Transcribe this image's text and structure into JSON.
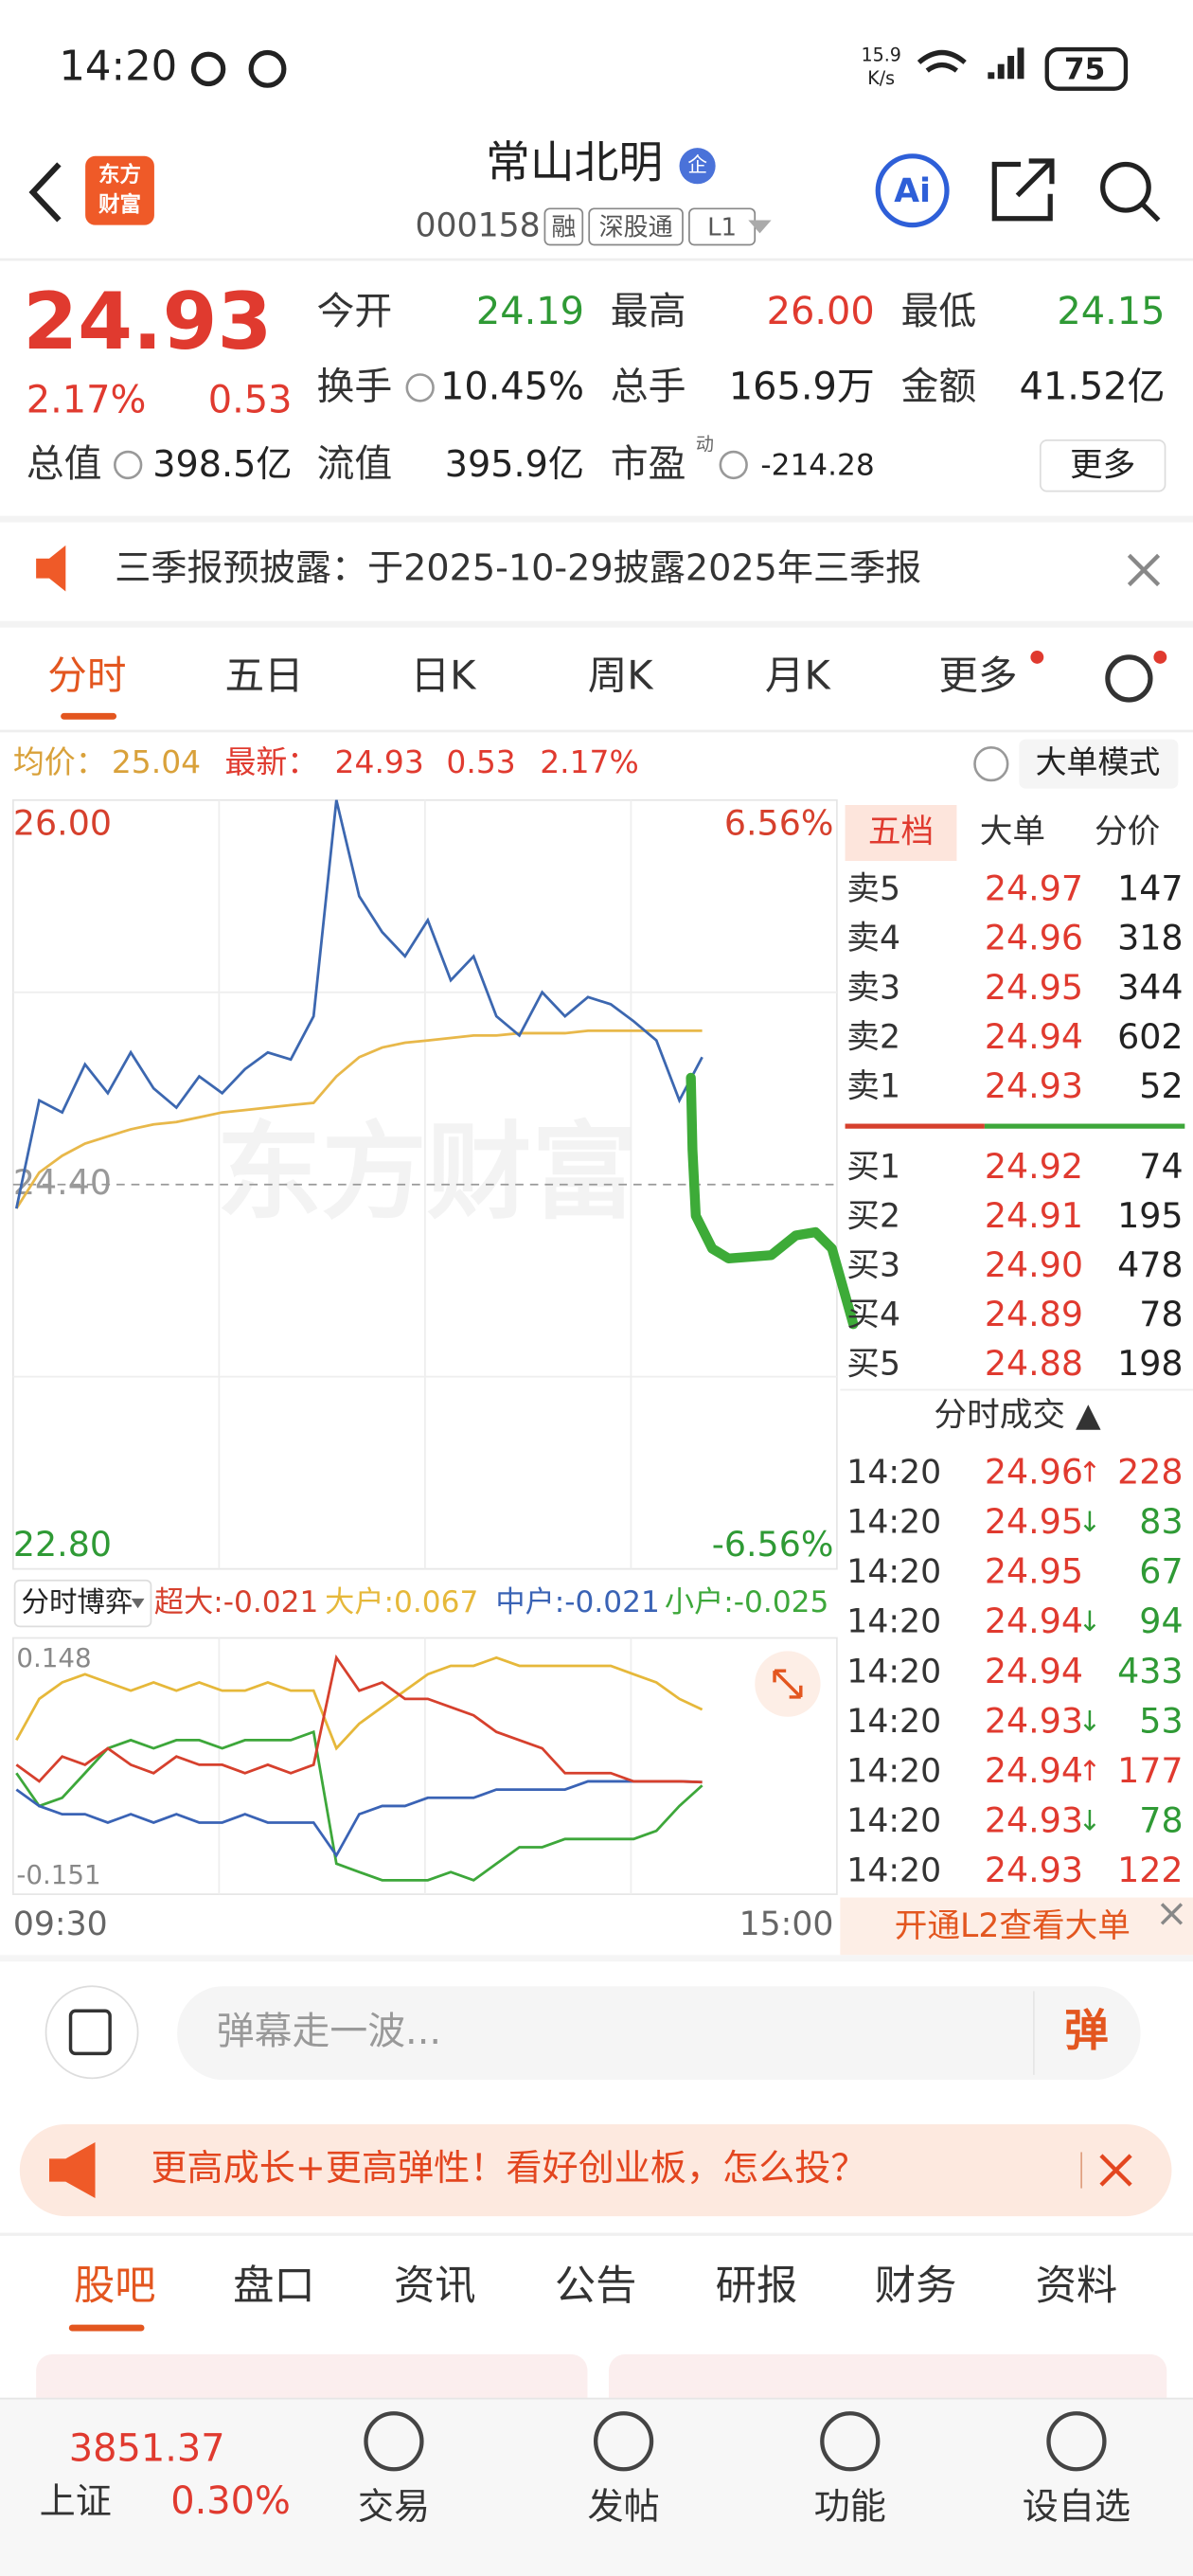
{
  "status": {
    "time": "14:20",
    "speed": "15.9",
    "speed_unit": "K/s",
    "battery": "75"
  },
  "header": {
    "logo": [
      "东方",
      "财富"
    ],
    "name": "常山北明",
    "badge": "企",
    "code": "000158",
    "tags": [
      "融",
      "深股通",
      "L1"
    ],
    "ai": "Ai"
  },
  "quote": {
    "price": "24.93",
    "change_pct": "2.17%",
    "change": "0.53",
    "fields": [
      {
        "label": "今开",
        "value": "24.19",
        "color": "#2f9a35"
      },
      {
        "label": "最高",
        "value": "26.00",
        "color": "#e03a2f"
      },
      {
        "label": "最低",
        "value": "24.15",
        "color": "#2f9a35"
      },
      {
        "label": "换手",
        "value": "10.45%",
        "color": "#222222"
      },
      {
        "label": "总手",
        "value": "165.9万",
        "color": "#222222"
      },
      {
        "label": "金额",
        "value": "41.52亿",
        "color": "#222222"
      }
    ],
    "valuation": [
      {
        "label": "总值",
        "value": "398.5亿"
      },
      {
        "label": "流值",
        "value": "395.9亿"
      },
      {
        "label": "市盈",
        "sup": "动",
        "value": "-214.28"
      }
    ],
    "more": "更多"
  },
  "notice": "三季报预披露：于2025-10-29披露2025年三季报",
  "tabs": [
    "分时",
    "五日",
    "日K",
    "周K",
    "月K",
    "更多"
  ],
  "info": {
    "avg_label": "均价：",
    "avg": "25.04",
    "latest_label": "最新：",
    "latest": "24.93",
    "change": "0.53",
    "change_pct": "2.17%",
    "mode": "大单模式"
  },
  "chart_data": [
    {
      "type": "line",
      "watermark": "东方财富",
      "ylim": [
        22.8,
        26
      ],
      "yticks": [
        {
          "value": 26,
          "label": "26.00"
        },
        {
          "value": 24.4,
          "label": "24.40"
        },
        {
          "value": 22.8,
          "label": "22.80"
        }
      ],
      "ytick_colors": [
        "#d6402d",
        "#999999",
        "#2f9a35"
      ],
      "y2lim": [
        -6.56,
        6.56
      ],
      "y2ticks": [
        {
          "value": 6.56,
          "label": "6.56%"
        },
        {
          "value": -6.56,
          "label": "-6.56%"
        }
      ],
      "x_labels": [
        "09:30",
        "15:00"
      ],
      "grid": true,
      "series": [
        {
          "color": "#3c67b0",
          "values": [
            24.3,
            24.75,
            24.7,
            24.9,
            24.78,
            24.95,
            24.8,
            24.72,
            24.85,
            24.78,
            24.88,
            24.95,
            24.92,
            25.1,
            26.0,
            25.6,
            25.45,
            25.35,
            25.5,
            25.25,
            25.35,
            25.1,
            25.02,
            25.2,
            25.1,
            25.18,
            25.15,
            25.08,
            25.0,
            24.75,
            24.93
          ]
        },
        {
          "color": "#e8b84a",
          "values": [
            24.3,
            24.45,
            24.52,
            24.57,
            24.6,
            24.63,
            24.65,
            24.66,
            24.68,
            24.7,
            24.71,
            24.72,
            24.73,
            24.74,
            24.85,
            24.93,
            24.97,
            24.99,
            25.0,
            25.01,
            25.02,
            25.02,
            25.03,
            25.03,
            25.03,
            25.04,
            25.04,
            25.04,
            25.04,
            25.04,
            25.04
          ]
        }
      ]
    },
    {
      "type": "line",
      "title": "分时博弈",
      "ylim": [
        -0.151,
        0.148
      ],
      "yticks": [
        0.148,
        -0.151
      ],
      "series": [
        {
          "name": "超大:-0.021",
          "color": "#d6402d",
          "values": [
            0.0,
            -0.02,
            0.01,
            0.0,
            0.02,
            0.0,
            -0.01,
            0.01,
            0.0,
            0.0,
            -0.01,
            0.0,
            -0.01,
            0.0,
            0.13,
            0.09,
            0.1,
            0.08,
            0.08,
            0.07,
            0.06,
            0.04,
            0.03,
            0.02,
            -0.01,
            -0.01,
            -0.01,
            -0.02,
            -0.02,
            -0.02,
            -0.021
          ]
        },
        {
          "name": "大户:0.067",
          "color": "#e6b83a",
          "values": [
            0.03,
            0.08,
            0.1,
            0.11,
            0.1,
            0.09,
            0.1,
            0.09,
            0.1,
            0.09,
            0.09,
            0.1,
            0.09,
            0.09,
            0.02,
            0.05,
            0.07,
            0.09,
            0.11,
            0.12,
            0.12,
            0.13,
            0.12,
            0.12,
            0.12,
            0.12,
            0.12,
            0.11,
            0.1,
            0.08,
            0.067
          ]
        },
        {
          "name": "中户:-0.021",
          "color": "#3a63b5",
          "values": [
            -0.03,
            -0.05,
            -0.06,
            -0.06,
            -0.07,
            -0.06,
            -0.07,
            -0.06,
            -0.07,
            -0.07,
            -0.06,
            -0.07,
            -0.07,
            -0.07,
            -0.11,
            -0.06,
            -0.05,
            -0.05,
            -0.04,
            -0.04,
            -0.04,
            -0.03,
            -0.03,
            -0.03,
            -0.03,
            -0.02,
            -0.02,
            -0.02,
            -0.02,
            -0.02,
            -0.021
          ]
        },
        {
          "name": "小户:-0.025",
          "color": "#3da73a",
          "values": [
            -0.01,
            -0.05,
            -0.04,
            -0.01,
            0.02,
            0.03,
            0.02,
            0.03,
            0.03,
            0.02,
            0.03,
            0.03,
            0.03,
            0.04,
            -0.12,
            -0.13,
            -0.14,
            -0.14,
            -0.14,
            -0.13,
            -0.14,
            -0.12,
            -0.1,
            -0.1,
            -0.09,
            -0.09,
            -0.09,
            -0.09,
            -0.08,
            -0.05,
            -0.025
          ]
        }
      ]
    }
  ],
  "order_book": {
    "tabs": [
      "五档",
      "大单",
      "分价"
    ],
    "asks": [
      {
        "label": "卖5",
        "price": "24.97",
        "volume": "147"
      },
      {
        "label": "卖4",
        "price": "24.96",
        "volume": "318"
      },
      {
        "label": "卖3",
        "price": "24.95",
        "volume": "344"
      },
      {
        "label": "卖2",
        "price": "24.94",
        "volume": "602"
      },
      {
        "label": "卖1",
        "price": "24.93",
        "volume": "52"
      }
    ],
    "bids": [
      {
        "label": "买1",
        "price": "24.92",
        "volume": "74"
      },
      {
        "label": "买2",
        "price": "24.91",
        "volume": "195"
      },
      {
        "label": "买3",
        "price": "24.90",
        "volume": "478"
      },
      {
        "label": "买4",
        "price": "24.89",
        "volume": "78"
      },
      {
        "label": "买5",
        "price": "24.88",
        "volume": "198"
      }
    ]
  },
  "trades": {
    "title": "分时成交 ▲",
    "rows": [
      {
        "time": "14:20",
        "price": "24.96",
        "arrow": "↑",
        "volume": "228",
        "color": "#e03a2f"
      },
      {
        "time": "14:20",
        "price": "24.95",
        "arrow": "↓",
        "volume": "83",
        "color": "#2f9a35"
      },
      {
        "time": "14:20",
        "price": "24.95",
        "volume": "67",
        "color": "#2f9a35"
      },
      {
        "time": "14:20",
        "price": "24.94",
        "arrow": "↓",
        "volume": "94",
        "color": "#2f9a35"
      },
      {
        "time": "14:20",
        "price": "24.94",
        "volume": "433",
        "color": "#2f9a35"
      },
      {
        "time": "14:20",
        "price": "24.93",
        "arrow": "↓",
        "volume": "53",
        "color": "#2f9a35"
      },
      {
        "time": "14:20",
        "price": "24.94",
        "arrow": "↑",
        "volume": "177",
        "color": "#e03a2f"
      },
      {
        "time": "14:20",
        "price": "24.93",
        "arrow": "↓",
        "volume": "78",
        "color": "#2f9a35"
      },
      {
        "time": "14:20",
        "price": "24.93",
        "volume": "122",
        "color": "#e03a2f"
      }
    ]
  },
  "l2_banner": "开通L2查看大单",
  "comment": {
    "placeholder": "弹幕走一波...",
    "button": "弹"
  },
  "ad": "更高成长+更高弹性！看好创业板，怎么投？",
  "section_tabs": [
    "股吧",
    "盘口",
    "资讯",
    "公告",
    "研报",
    "财务",
    "资料"
  ],
  "bottom_nav": {
    "index_value": "3851.37",
    "index_name": "上证",
    "index_pct": "0.30%",
    "items": [
      "交易",
      "发帖",
      "功能",
      "设自选"
    ]
  }
}
